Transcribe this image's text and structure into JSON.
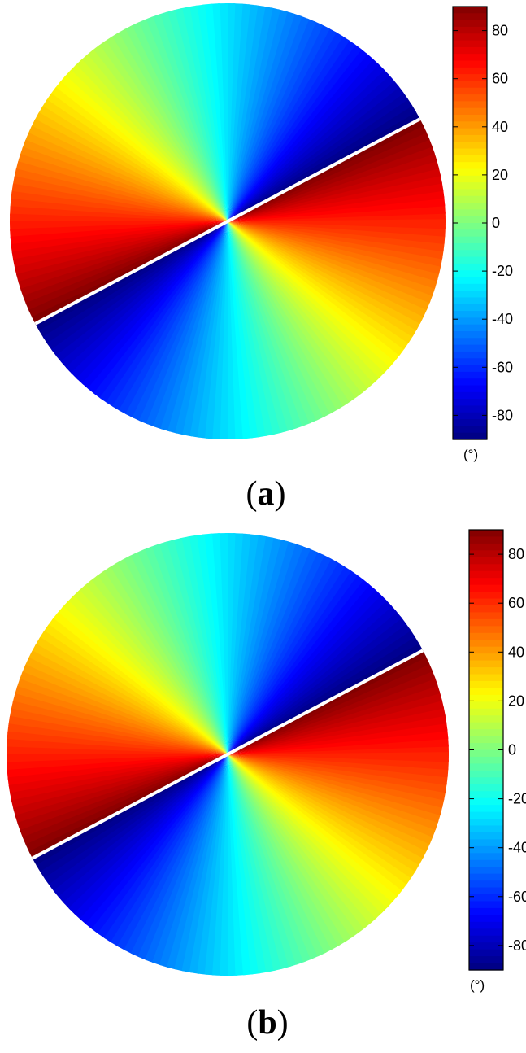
{
  "chart_data": [
    {
      "type": "heatmap",
      "panel": "a",
      "caption_letter": "a",
      "colorbar": {
        "colormap": "jet",
        "range": [
          -90,
          90
        ],
        "ticks": [
          80,
          60,
          40,
          20,
          0,
          -20,
          -40,
          -60,
          -80
        ],
        "unit": "(°)"
      },
      "field": {
        "shape": "disk",
        "value_formula": "angle = (polar_angle/2) + 180*floor... (second-order vortex, wrapped to [-90, 90])",
        "discontinuity_line_angle_deg": 28
      }
    },
    {
      "type": "heatmap",
      "panel": "b",
      "caption_letter": "b",
      "colorbar": {
        "colormap": "jet",
        "range": [
          -90,
          90
        ],
        "ticks": [
          80,
          60,
          40,
          20,
          0,
          -20,
          -40,
          -60,
          -80
        ],
        "unit": "(°)"
      },
      "field": {
        "shape": "disk",
        "value_formula": "angle = (polar_angle/2) + 180*floor... (second-order vortex, wrapped to [-90, 90])",
        "discontinuity_line_angle_deg": 28
      }
    }
  ]
}
